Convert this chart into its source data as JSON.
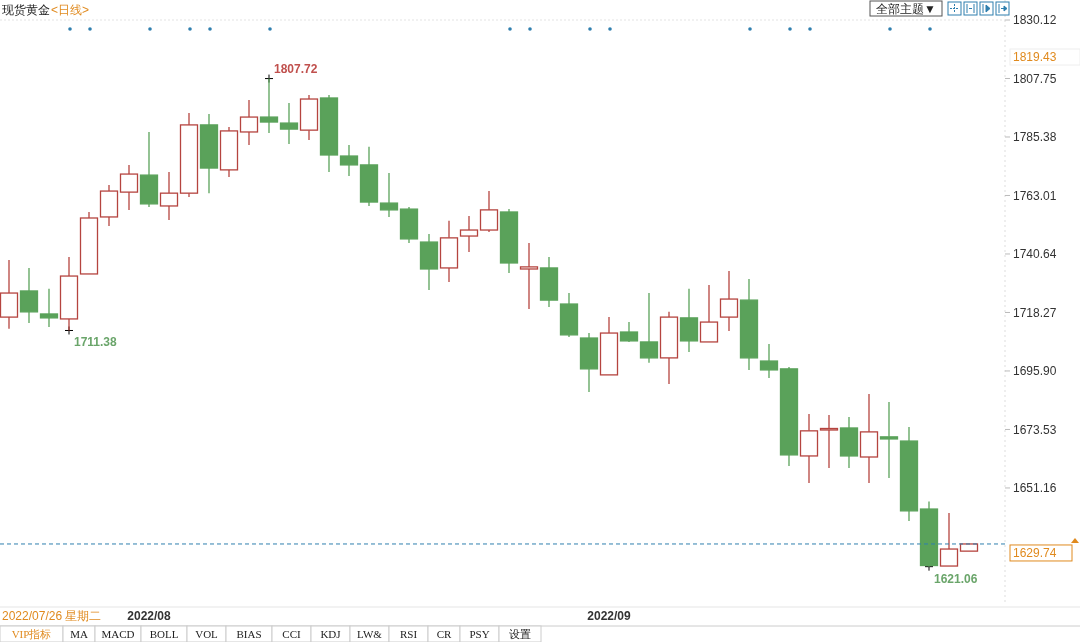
{
  "chart_data": {
    "type": "candlestick",
    "title": "现货黄金",
    "subtitle": "<日线>",
    "categories": [
      null,
      null,
      null,
      null,
      null,
      null,
      null,
      "2022/08",
      null,
      null,
      null,
      null,
      null,
      null,
      null,
      null,
      null,
      null,
      null,
      null,
      null,
      null,
      null,
      null,
      null,
      null,
      null,
      null,
      null,
      null,
      "2022/09",
      null,
      null,
      null,
      null,
      null,
      null,
      null,
      null,
      null,
      null,
      null,
      null,
      null,
      null,
      null,
      null,
      null,
      null
    ],
    "ohlc": [
      [
        1716.5,
        1738.3,
        1712.0,
        1725.7
      ],
      [
        1726.5,
        1735.3,
        1714.2,
        1718.5
      ],
      [
        1717.7,
        1727.3,
        1712.7,
        1716.2
      ],
      [
        1715.8,
        1739.5,
        1711.38,
        1732.2
      ],
      [
        1733.0,
        1756.7,
        1733.0,
        1754.4
      ],
      [
        1754.8,
        1767.0,
        1751.3,
        1764.7
      ],
      [
        1764.3,
        1774.7,
        1757.5,
        1771.2
      ],
      [
        1770.8,
        1787.3,
        1758.6,
        1759.8
      ],
      [
        1759.0,
        1772.0,
        1753.6,
        1763.9
      ],
      [
        1763.9,
        1794.6,
        1762.4,
        1790.0
      ],
      [
        1790.0,
        1794.2,
        1763.9,
        1773.5
      ],
      [
        1772.8,
        1789.2,
        1770.1,
        1787.7
      ],
      [
        1787.3,
        1799.5,
        1782.3,
        1793.0
      ],
      [
        1793.0,
        1807.72,
        1786.9,
        1791.1
      ],
      [
        1790.7,
        1798.4,
        1782.7,
        1788.4
      ],
      [
        1788.0,
        1801.4,
        1784.2,
        1799.9
      ],
      [
        1800.3,
        1801.4,
        1772.0,
        1778.5
      ],
      [
        1778.1,
        1782.3,
        1770.5,
        1774.7
      ],
      [
        1774.7,
        1781.6,
        1759.0,
        1760.5
      ],
      [
        1760.1,
        1771.6,
        1754.8,
        1757.5
      ],
      [
        1757.8,
        1758.6,
        1744.8,
        1746.4
      ],
      [
        1745.2,
        1748.3,
        1726.9,
        1734.9
      ],
      [
        1735.3,
        1753.3,
        1729.9,
        1746.8
      ],
      [
        1747.5,
        1755.2,
        1741.4,
        1749.8
      ],
      [
        1749.8,
        1764.7,
        1749.0,
        1757.5
      ],
      [
        1756.7,
        1757.8,
        1733.4,
        1737.2
      ],
      [
        1734.9,
        1744.8,
        1719.6,
        1735.7
      ],
      [
        1735.3,
        1739.5,
        1720.4,
        1723.0
      ],
      [
        1721.5,
        1725.7,
        1708.9,
        1709.7
      ],
      [
        1708.5,
        1710.4,
        1687.9,
        1696.7
      ],
      [
        1694.4,
        1716.5,
        1694.4,
        1710.4
      ],
      [
        1710.8,
        1714.6,
        1707.0,
        1707.4
      ],
      [
        1707.0,
        1725.7,
        1699.0,
        1700.9
      ],
      [
        1700.9,
        1718.5,
        1690.9,
        1716.5
      ],
      [
        1716.2,
        1727.3,
        1703.2,
        1707.4
      ],
      [
        1707.0,
        1728.8,
        1707.0,
        1714.6
      ],
      [
        1716.5,
        1734.1,
        1711.2,
        1723.4
      ],
      [
        1723.0,
        1731.1,
        1696.3,
        1700.9
      ],
      [
        1699.7,
        1706.2,
        1693.2,
        1696.3
      ],
      [
        1696.7,
        1697.4,
        1659.6,
        1663.8
      ],
      [
        1663.4,
        1679.4,
        1653.1,
        1673.0
      ],
      [
        1673.7,
        1679.1,
        1658.8,
        1673.9
      ],
      [
        1674.1,
        1678.3,
        1658.8,
        1663.4
      ],
      [
        1663.0,
        1687.1,
        1653.1,
        1672.6
      ],
      [
        1670.7,
        1684.0,
        1655.0,
        1669.9
      ],
      [
        1669.1,
        1674.5,
        1638.5,
        1642.4
      ],
      [
        1643.1,
        1646.0,
        1621.06,
        1621.5
      ],
      [
        1621.3,
        1641.6,
        1621.3,
        1627.8
      ],
      [
        1627.0,
        1629.74,
        1627.0,
        1629.74
      ]
    ],
    "colors": [
      "#b5443f",
      "#5aa25a",
      "#5aa25a",
      "#b5443f",
      "#b5443f",
      "#b5443f",
      "#b5443f",
      "#5aa25a",
      "#b5443f",
      "#b5443f",
      "#5aa25a",
      "#b5443f",
      "#b5443f",
      "#5aa25a",
      "#5aa25a",
      "#b5443f",
      "#5aa25a",
      "#5aa25a",
      "#5aa25a",
      "#5aa25a",
      "#5aa25a",
      "#5aa25a",
      "#b5443f",
      "#b5443f",
      "#b5443f",
      "#5aa25a",
      "#b5443f",
      "#5aa25a",
      "#5aa25a",
      "#5aa25a",
      "#b5443f",
      "#5aa25a",
      "#5aa25a",
      "#b5443f",
      "#5aa25a",
      "#b5443f",
      "#b5443f",
      "#5aa25a",
      "#5aa25a",
      "#5aa25a",
      "#b5443f",
      "#b5443f",
      "#5aa25a",
      "#b5443f",
      "#5aa25a",
      "#5aa25a",
      "#5aa25a",
      "#b5443f",
      "#b5443f"
    ],
    "ylim": [
      1606.4,
      1830.12
    ],
    "yticks": [
      1651.16,
      1673.53,
      {
        "value": 1695.9,
        "label": "1695.90"
      },
      1718.27,
      1740.64,
      1763.01,
      1785.38,
      1807.75,
      1830.12
    ],
    "ref_lines": [
      {
        "axis": "y",
        "value": 1629.74,
        "label": "1629.74",
        "color": "#2f7fae",
        "line_style": "dashed"
      }
    ],
    "annotations": [
      "2022/07/26 星期二",
      "全部主题▼",
      "VIP指标",
      "MA",
      "MACD",
      "BOLL",
      "VOL",
      "BIAS",
      "CCI",
      "KDJ",
      "LW&",
      "RSI",
      "CR",
      "PSY",
      "设置",
      "1807.72",
      "1711.38",
      "1621.06",
      "1819.43"
    ]
  }
}
